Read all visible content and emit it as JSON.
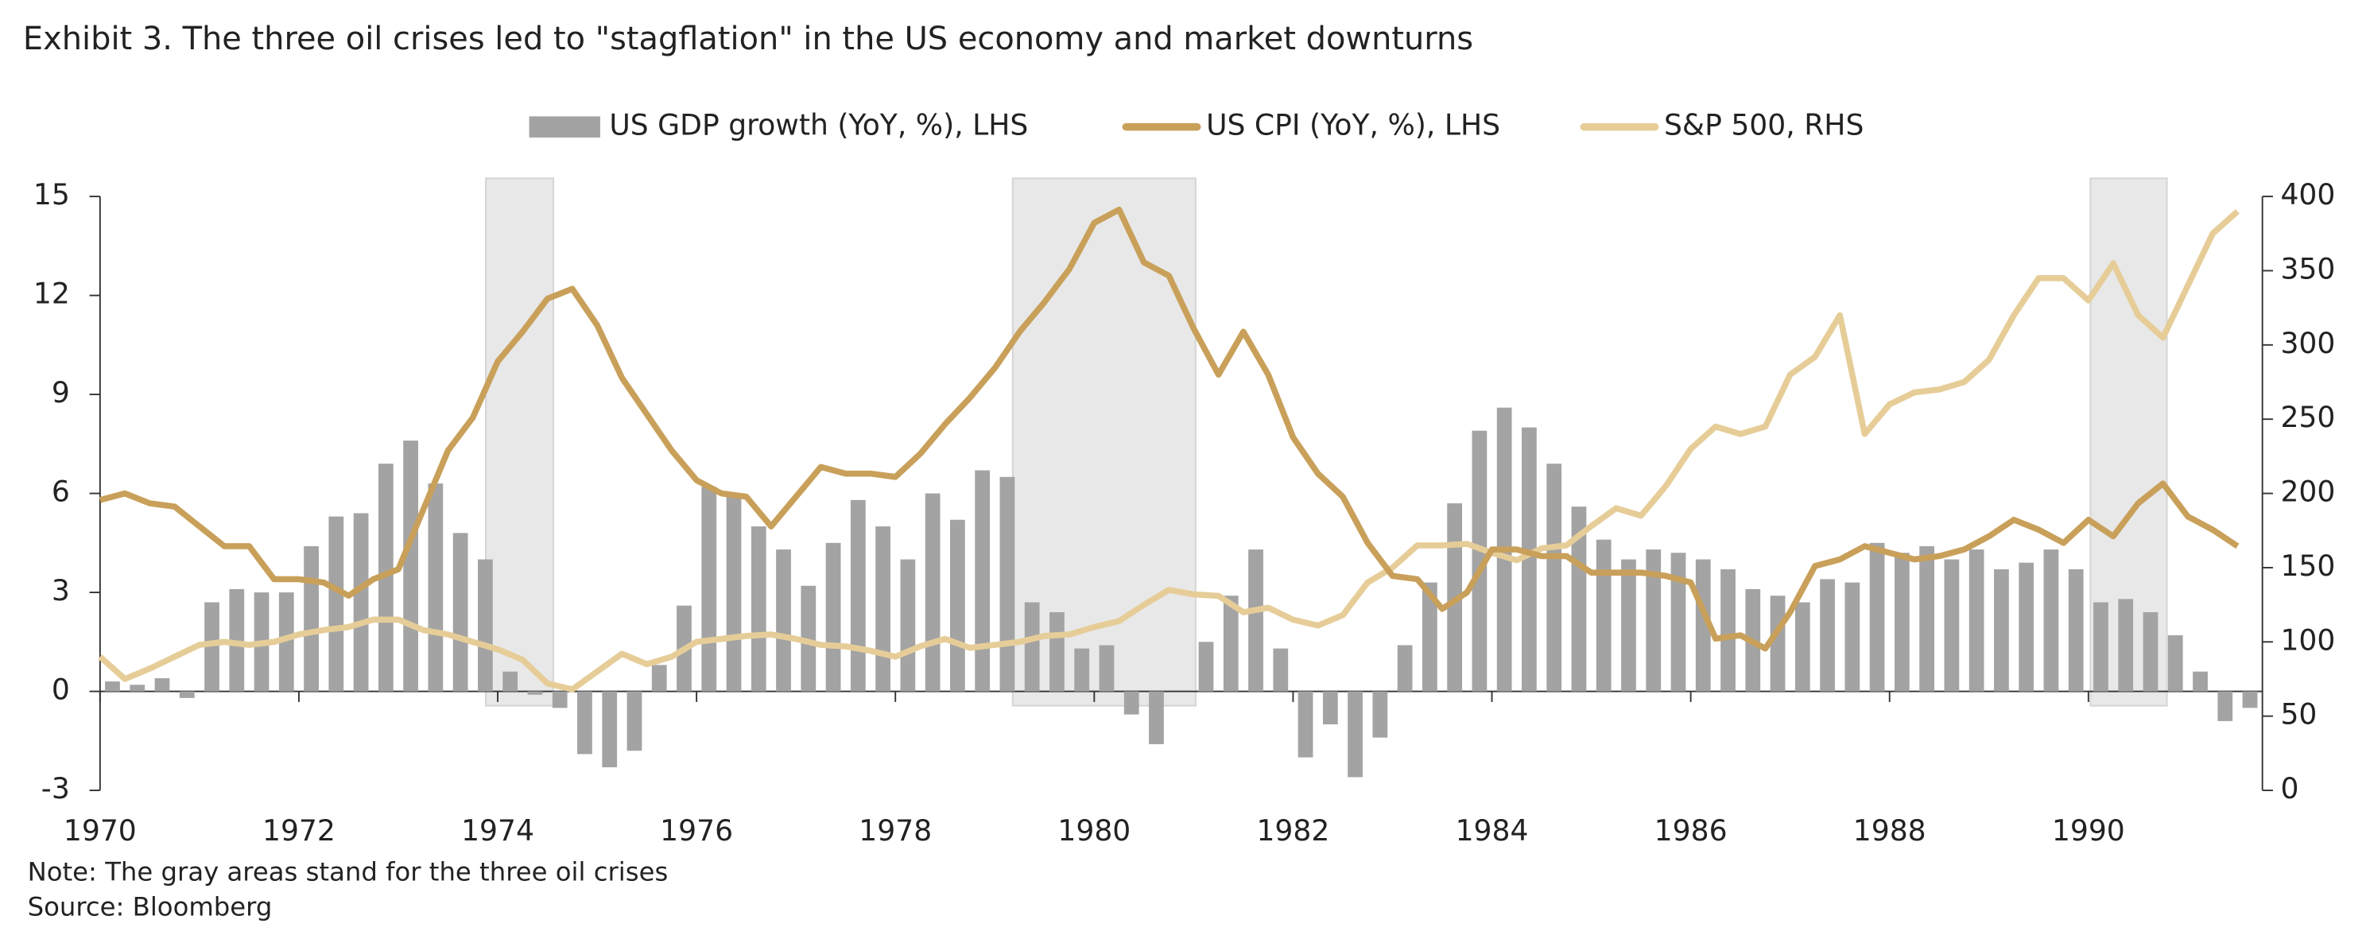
{
  "chart_data": {
    "type": "combo",
    "title": "Exhibit 3. The three oil crises led to \"stagflation\" in the US economy and market downturns",
    "notes": [
      "Note: The gray areas stand for the three oil crises",
      "Source: Bloomberg"
    ],
    "x": [
      1970,
      1970.25,
      1970.5,
      1970.75,
      1971,
      1971.25,
      1971.5,
      1971.75,
      1972,
      1972.25,
      1972.5,
      1972.75,
      1973,
      1973.25,
      1973.5,
      1973.75,
      1974,
      1974.25,
      1974.5,
      1974.75,
      1975,
      1975.25,
      1975.5,
      1975.75,
      1976,
      1976.25,
      1976.5,
      1976.75,
      1977,
      1977.25,
      1977.5,
      1977.75,
      1978,
      1978.25,
      1978.5,
      1978.75,
      1979,
      1979.25,
      1979.5,
      1979.75,
      1980,
      1980.25,
      1980.5,
      1980.75,
      1981,
      1981.25,
      1981.5,
      1981.75,
      1982,
      1982.25,
      1982.5,
      1982.75,
      1983,
      1983.25,
      1983.5,
      1983.75,
      1984,
      1984.25,
      1984.5,
      1984.75,
      1985,
      1985.25,
      1985.5,
      1985.75,
      1986,
      1986.25,
      1986.5,
      1986.75,
      1987,
      1987.25,
      1987.5,
      1987.75,
      1988,
      1988.25,
      1988.5,
      1988.75,
      1989,
      1989.25,
      1989.5,
      1989.75,
      1990,
      1990.25,
      1990.5,
      1990.75,
      1991,
      1991.25,
      1991.5
    ],
    "series": [
      {
        "name": "US GDP growth (YoY, %), LHS",
        "type": "bar",
        "color": "#a3a3a3",
        "values": [
          0.3,
          0.2,
          0.4,
          -0.2,
          2.7,
          3.1,
          3.0,
          3.0,
          4.4,
          5.3,
          5.4,
          6.9,
          7.6,
          6.3,
          4.8,
          4.0,
          0.6,
          -0.1,
          -0.5,
          -1.9,
          -2.3,
          -1.8,
          0.8,
          2.6,
          6.2,
          5.9,
          5.0,
          4.3,
          3.2,
          4.5,
          5.8,
          5.0,
          4.0,
          6.0,
          5.2,
          6.7,
          6.5,
          2.7,
          2.4,
          1.3,
          1.4,
          -0.7,
          -1.6,
          0.0,
          1.5,
          2.9,
          4.3,
          1.3,
          -2.0,
          -1.0,
          -2.6,
          -1.4,
          1.4,
          3.3,
          5.7,
          7.9,
          8.6,
          8.0,
          6.9,
          5.6,
          4.6,
          4.0,
          4.3,
          4.2,
          4.0,
          3.7,
          3.1,
          2.9,
          2.7,
          3.4,
          3.3,
          4.5,
          4.2,
          4.4,
          4.0,
          4.3,
          3.7,
          3.9,
          4.3,
          3.7,
          2.7,
          2.8,
          2.4,
          1.7,
          0.6,
          -0.9,
          -0.5
        ]
      },
      {
        "name": "US CPI (YoY, %), LHS",
        "type": "line",
        "color": "#c9a05a",
        "values": [
          5.8,
          6.0,
          5.7,
          5.6,
          5.0,
          4.4,
          4.4,
          3.4,
          3.4,
          3.3,
          2.9,
          3.4,
          3.7,
          5.5,
          7.3,
          8.3,
          10.0,
          10.9,
          11.9,
          12.2,
          11.1,
          9.5,
          8.4,
          7.3,
          6.4,
          6.0,
          5.9,
          5.0,
          5.9,
          6.8,
          6.6,
          6.6,
          6.5,
          7.2,
          8.1,
          8.9,
          9.8,
          10.9,
          11.8,
          12.8,
          14.2,
          14.6,
          13.0,
          12.6,
          11.0,
          9.6,
          10.9,
          9.6,
          7.7,
          6.6,
          5.9,
          4.5,
          3.5,
          3.4,
          2.5,
          3.0,
          4.3,
          4.3,
          4.1,
          4.1,
          3.6,
          3.6,
          3.6,
          3.5,
          3.3,
          1.6,
          1.7,
          1.3,
          2.4,
          3.8,
          4.0,
          4.4,
          4.2,
          4.0,
          4.1,
          4.3,
          4.7,
          5.2,
          4.9,
          4.5,
          5.2,
          4.7,
          5.7,
          6.3,
          5.3,
          4.9,
          4.4
        ]
      },
      {
        "name": "S&P 500, RHS",
        "type": "line",
        "axis": "y2",
        "color": "#e6cd98",
        "values": [
          90,
          75,
          82,
          90,
          98,
          100,
          98,
          100,
          105,
          108,
          110,
          115,
          115,
          108,
          105,
          100,
          95,
          88,
          72,
          68,
          80,
          92,
          85,
          90,
          100,
          102,
          104,
          105,
          102,
          98,
          97,
          94,
          90,
          97,
          102,
          96,
          98,
          100,
          104,
          105,
          110,
          114,
          125,
          135,
          132,
          131,
          120,
          123,
          115,
          111,
          118,
          140,
          150,
          165,
          165,
          166,
          160,
          155,
          163,
          165,
          178,
          190,
          185,
          205,
          230,
          245,
          240,
          245,
          280,
          292,
          320,
          240,
          260,
          268,
          270,
          275,
          290,
          320,
          345,
          345,
          330,
          355,
          320,
          305,
          340,
          375,
          390
        ]
      }
    ],
    "shaded_ranges": [
      [
        1973.88,
        1974.56
      ],
      [
        1979.18,
        1981.02
      ],
      [
        1990.02,
        1990.79
      ]
    ],
    "shade_color": "#e4e4e4",
    "xlim": [
      1970,
      1991.75
    ],
    "xticks": [
      1970,
      1972,
      1974,
      1976,
      1978,
      1980,
      1982,
      1984,
      1986,
      1988,
      1990
    ],
    "ylim": [
      -3,
      15
    ],
    "yticks": [
      -3,
      0,
      3,
      6,
      9,
      12,
      15
    ],
    "y2lim": [
      0,
      400
    ],
    "y2ticks": [
      0,
      50,
      100,
      150,
      200,
      250,
      300,
      350,
      400
    ],
    "legend": "top"
  }
}
